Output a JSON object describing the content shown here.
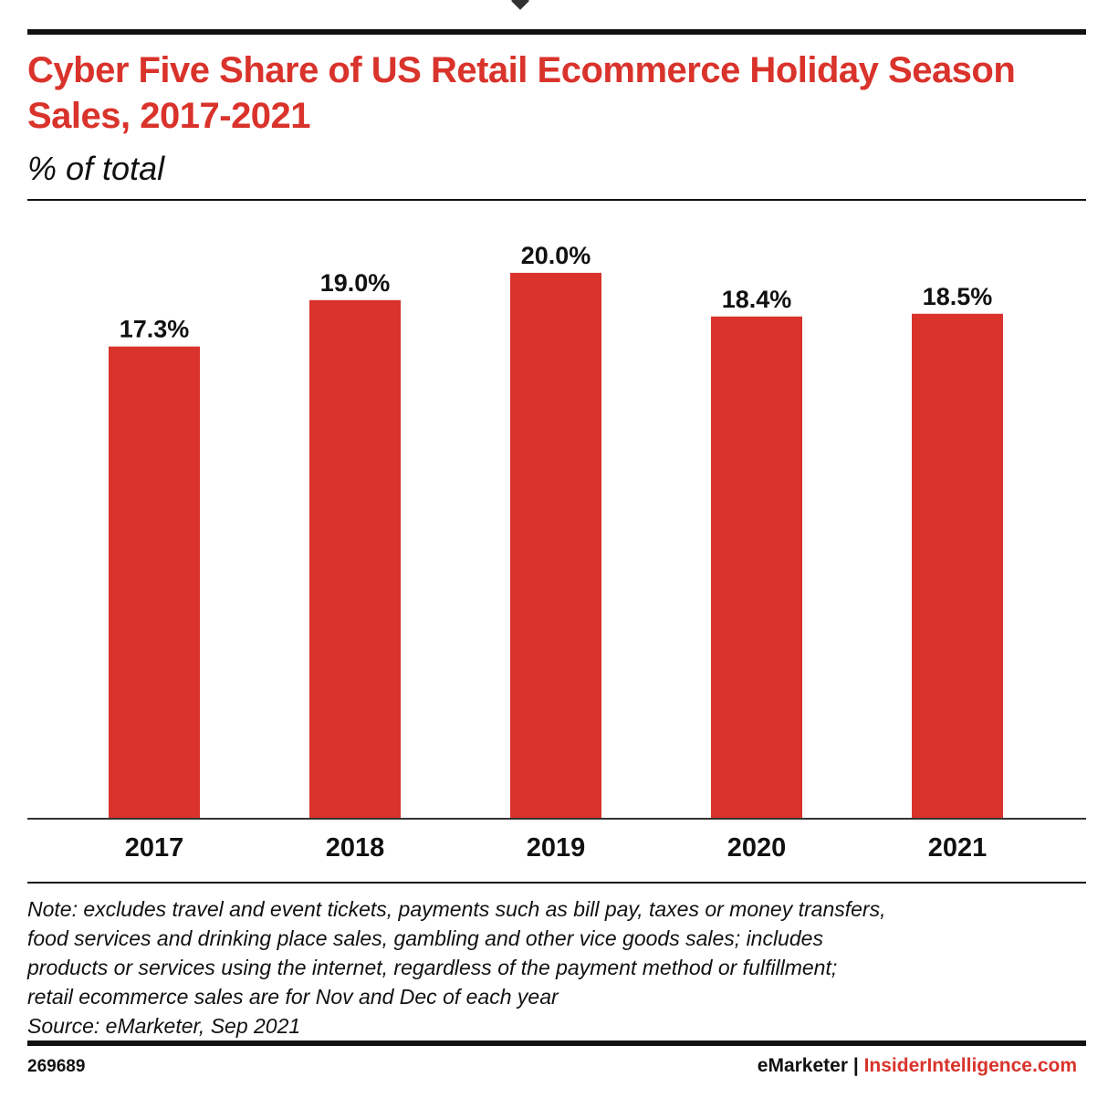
{
  "header": {
    "title": "Cyber Five Share of US Retail Ecommerce Holiday Season Sales, 2017-2021",
    "subtitle": "% of total"
  },
  "chart_data": {
    "type": "bar",
    "title": "Cyber Five Share of US Retail Ecommerce Holiday Season Sales, 2017-2021",
    "subtitle": "% of total",
    "categories": [
      "2017",
      "2018",
      "2019",
      "2020",
      "2021"
    ],
    "values": [
      17.3,
      19.0,
      20.0,
      18.4,
      18.5
    ],
    "labels": [
      "17.3%",
      "19.0%",
      "20.0%",
      "18.4%",
      "18.5%"
    ],
    "xlabel": "",
    "ylabel": "% of total",
    "ylim": [
      0,
      20.8
    ],
    "grid": false,
    "bar_color": "#d9332b"
  },
  "note": {
    "lines": [
      "Note: excludes travel and event tickets, payments such as bill pay, taxes or money transfers,",
      "food services and drinking place sales, gambling and other vice goods sales; includes",
      "products or services using the internet, regardless of the payment method or fulfillment;",
      "retail ecommerce sales are for Nov and Dec of each year"
    ],
    "source": "Source: eMarketer, Sep 2021"
  },
  "footer": {
    "id": "269689",
    "brand_left": "eMarketer",
    "separator": "|",
    "brand_right": "InsiderIntelligence.com"
  },
  "colors": {
    "accent": "#d9332b",
    "text": "#111111"
  }
}
